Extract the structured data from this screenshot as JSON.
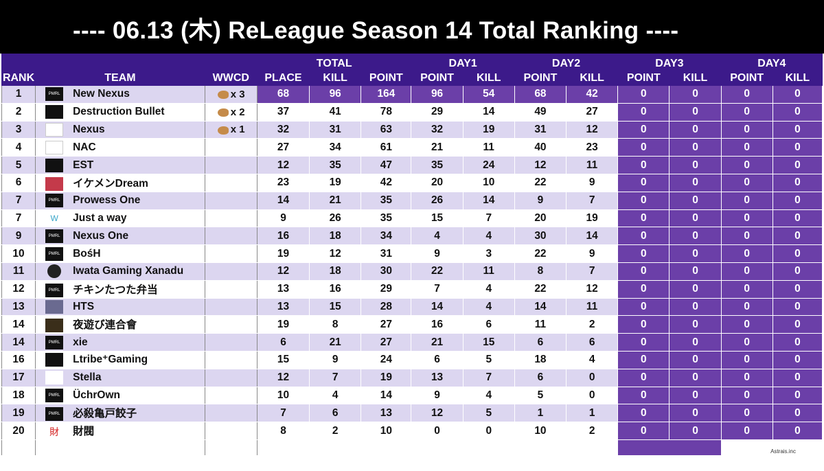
{
  "title": "---- 06.13 (木) ReLeague Season 14  Total Ranking ----",
  "credit": "Astrais.inc",
  "headers": {
    "rank": "RANK",
    "team": "TEAM",
    "wwcd": "WWCD",
    "total": "TOTAL",
    "day1": "DAY1",
    "day2": "DAY2",
    "day3": "DAY3",
    "day4": "DAY4",
    "place": "PLACE",
    "kill": "KILL",
    "point": "POINT"
  },
  "colors": {
    "header": "#3c1a8a",
    "accent": "#6b3fa8",
    "stripe": "#dcd6f0"
  },
  "rows": [
    {
      "rank": "1",
      "team": "New Nexus",
      "wwcd": "x 3",
      "place": "68",
      "kill": "96",
      "point": "164",
      "d1p": "96",
      "d1k": "54",
      "d2p": "68",
      "d2k": "42",
      "d3p": "0",
      "d3k": "0",
      "d4p": "0",
      "d4k": "0",
      "logo": "pmrl-logo",
      "logo_text": "PMRL",
      "logo_class": ""
    },
    {
      "rank": "2",
      "team": "Destruction Bullet",
      "wwcd": "x 2",
      "place": "37",
      "kill": "41",
      "point": "78",
      "d1p": "29",
      "d1k": "14",
      "d2p": "49",
      "d2k": "27",
      "d3p": "0",
      "d3k": "0",
      "d4p": "0",
      "d4k": "0",
      "logo": "db-logo",
      "logo_text": "",
      "logo_class": ""
    },
    {
      "rank": "3",
      "team": "Nexus",
      "wwcd": "x 1",
      "place": "32",
      "kill": "31",
      "point": "63",
      "d1p": "32",
      "d1k": "19",
      "d2p": "31",
      "d2k": "12",
      "d3p": "0",
      "d3k": "0",
      "d4p": "0",
      "d4k": "0",
      "logo": "nexus-logo",
      "logo_text": "",
      "logo_class": "light"
    },
    {
      "rank": "4",
      "team": "NAC",
      "wwcd": "",
      "place": "27",
      "kill": "34",
      "point": "61",
      "d1p": "21",
      "d1k": "11",
      "d2p": "40",
      "d2k": "23",
      "d3p": "0",
      "d3k": "0",
      "d4p": "0",
      "d4k": "0",
      "logo": "nac-logo",
      "logo_text": "",
      "logo_class": "light"
    },
    {
      "rank": "5",
      "team": "EST",
      "wwcd": "",
      "place": "12",
      "kill": "35",
      "point": "47",
      "d1p": "35",
      "d1k": "24",
      "d2p": "12",
      "d2k": "11",
      "d3p": "0",
      "d3k": "0",
      "d4p": "0",
      "d4k": "0",
      "logo": "est-logo",
      "logo_text": "",
      "logo_class": ""
    },
    {
      "rank": "6",
      "team": "イケメンDream",
      "wwcd": "",
      "place": "23",
      "kill": "19",
      "point": "42",
      "d1p": "20",
      "d1k": "10",
      "d2p": "22",
      "d2k": "9",
      "d3p": "0",
      "d3k": "0",
      "d4p": "0",
      "d4k": "0",
      "logo": "dream-logo",
      "logo_text": "",
      "logo_class": "red"
    },
    {
      "rank": "7",
      "team": "Prowess One",
      "wwcd": "",
      "place": "14",
      "kill": "21",
      "point": "35",
      "d1p": "26",
      "d1k": "14",
      "d2p": "9",
      "d2k": "7",
      "d3p": "0",
      "d3k": "0",
      "d4p": "0",
      "d4k": "0",
      "logo": "pmrl-logo",
      "logo_text": "PMRL",
      "logo_class": ""
    },
    {
      "rank": "7",
      "team": "Just a way",
      "wwcd": "",
      "place": "9",
      "kill": "26",
      "point": "35",
      "d1p": "15",
      "d1k": "7",
      "d2p": "20",
      "d2k": "19",
      "d3p": "0",
      "d3k": "0",
      "d4p": "0",
      "d4k": "0",
      "logo": "jaw-logo",
      "logo_text": "W",
      "logo_class": "teal"
    },
    {
      "rank": "9",
      "team": "Nexus One",
      "wwcd": "",
      "place": "16",
      "kill": "18",
      "point": "34",
      "d1p": "4",
      "d1k": "4",
      "d2p": "30",
      "d2k": "14",
      "d3p": "0",
      "d3k": "0",
      "d4p": "0",
      "d4k": "0",
      "logo": "pmrl-logo",
      "logo_text": "PMRL",
      "logo_class": ""
    },
    {
      "rank": "10",
      "team": "BośH",
      "wwcd": "",
      "place": "19",
      "kill": "12",
      "point": "31",
      "d1p": "9",
      "d1k": "3",
      "d2p": "22",
      "d2k": "9",
      "d3p": "0",
      "d3k": "0",
      "d4p": "0",
      "d4k": "0",
      "logo": "pmrl-logo",
      "logo_text": "PMRL",
      "logo_class": ""
    },
    {
      "rank": "11",
      "team": "Iwata Gaming Xanadu",
      "wwcd": "",
      "place": "12",
      "kill": "18",
      "point": "30",
      "d1p": "22",
      "d1k": "11",
      "d2p": "8",
      "d2k": "7",
      "d3p": "0",
      "d3k": "0",
      "d4p": "0",
      "d4k": "0",
      "logo": "igx-logo",
      "logo_text": "",
      "logo_class": "dark2"
    },
    {
      "rank": "12",
      "team": "チキンたつた弁当",
      "wwcd": "",
      "place": "13",
      "kill": "16",
      "point": "29",
      "d1p": "7",
      "d1k": "4",
      "d2p": "22",
      "d2k": "12",
      "d3p": "0",
      "d3k": "0",
      "d4p": "0",
      "d4k": "0",
      "logo": "pmrl-logo",
      "logo_text": "PMRL",
      "logo_class": ""
    },
    {
      "rank": "13",
      "team": "HTS",
      "wwcd": "",
      "place": "13",
      "kill": "15",
      "point": "28",
      "d1p": "14",
      "d1k": "4",
      "d2p": "14",
      "d2k": "11",
      "d3p": "0",
      "d3k": "0",
      "d4p": "0",
      "d4k": "0",
      "logo": "hts-logo",
      "logo_text": "",
      "logo_class": "gray"
    },
    {
      "rank": "14",
      "team": "夜遊び連合會",
      "wwcd": "",
      "place": "19",
      "kill": "8",
      "point": "27",
      "d1p": "16",
      "d1k": "6",
      "d2p": "11",
      "d2k": "2",
      "d3p": "0",
      "d3k": "0",
      "d4p": "0",
      "d4k": "0",
      "logo": "wolf-logo",
      "logo_text": "",
      "logo_class": "wolf"
    },
    {
      "rank": "14",
      "team": "xie",
      "wwcd": "",
      "place": "6",
      "kill": "21",
      "point": "27",
      "d1p": "21",
      "d1k": "15",
      "d2p": "6",
      "d2k": "6",
      "d3p": "0",
      "d3k": "0",
      "d4p": "0",
      "d4k": "0",
      "logo": "pmrl-logo",
      "logo_text": "PMRL",
      "logo_class": ""
    },
    {
      "rank": "16",
      "team": "Ltribe⁺Gaming",
      "wwcd": "",
      "place": "15",
      "kill": "9",
      "point": "24",
      "d1p": "6",
      "d1k": "5",
      "d2p": "18",
      "d2k": "4",
      "d3p": "0",
      "d3k": "0",
      "d4p": "0",
      "d4k": "0",
      "logo": "ltribe-logo",
      "logo_text": "",
      "logo_class": ""
    },
    {
      "rank": "17",
      "team": "Stella",
      "wwcd": "",
      "place": "12",
      "kill": "7",
      "point": "19",
      "d1p": "13",
      "d1k": "7",
      "d2p": "6",
      "d2k": "0",
      "d3p": "0",
      "d3k": "0",
      "d4p": "0",
      "d4k": "0",
      "logo": "stella-logo",
      "logo_text": "",
      "logo_class": "purple"
    },
    {
      "rank": "18",
      "team": "ÜchrOwn",
      "wwcd": "",
      "place": "10",
      "kill": "4",
      "point": "14",
      "d1p": "9",
      "d1k": "4",
      "d2p": "5",
      "d2k": "0",
      "d3p": "0",
      "d3k": "0",
      "d4p": "0",
      "d4k": "0",
      "logo": "pmrl-logo",
      "logo_text": "PMRL",
      "logo_class": ""
    },
    {
      "rank": "19",
      "team": "必殺亀戸餃子",
      "wwcd": "",
      "place": "7",
      "kill": "6",
      "point": "13",
      "d1p": "12",
      "d1k": "5",
      "d2p": "1",
      "d2k": "1",
      "d3p": "0",
      "d3k": "0",
      "d4p": "0",
      "d4k": "0",
      "logo": "pmrl-logo",
      "logo_text": "PMRL",
      "logo_class": ""
    },
    {
      "rank": "20",
      "team": "財閥",
      "wwcd": "",
      "place": "8",
      "kill": "2",
      "point": "10",
      "d1p": "0",
      "d1k": "0",
      "d2p": "10",
      "d2k": "2",
      "d3p": "0",
      "d3k": "0",
      "d4p": "0",
      "d4k": "0",
      "logo": "zaibatsu-logo",
      "logo_text": "財",
      "logo_class": "red2"
    }
  ]
}
